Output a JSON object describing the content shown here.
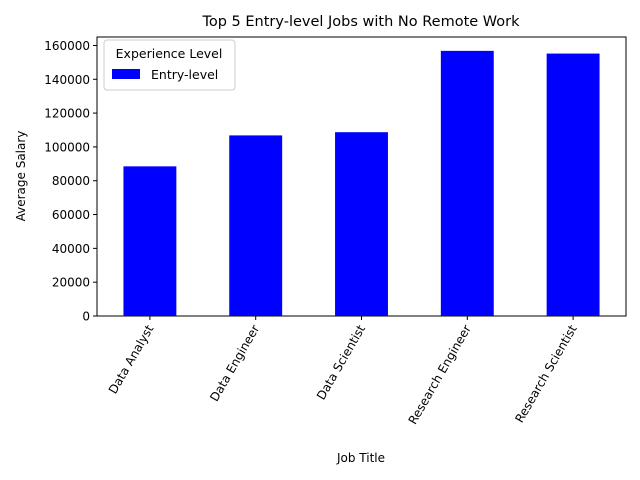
{
  "chart_data": {
    "type": "bar",
    "title": "Top 5 Entry-level Jobs with No Remote Work",
    "xlabel": "Job Title",
    "ylabel": "Average Salary",
    "categories": [
      "Data Analyst",
      "Data Engineer",
      "Data Scientist",
      "Research Engineer",
      "Research Scientist"
    ],
    "series": [
      {
        "name": "Entry-level",
        "values": [
          88500,
          106800,
          108700,
          156800,
          155200
        ],
        "color": "#0000ff"
      }
    ],
    "ylim": [
      0,
      165000
    ],
    "yticks": [
      0,
      20000,
      40000,
      60000,
      80000,
      100000,
      120000,
      140000,
      160000
    ],
    "legend": {
      "title": "Experience Level",
      "position": "top-left"
    },
    "grid": false
  }
}
